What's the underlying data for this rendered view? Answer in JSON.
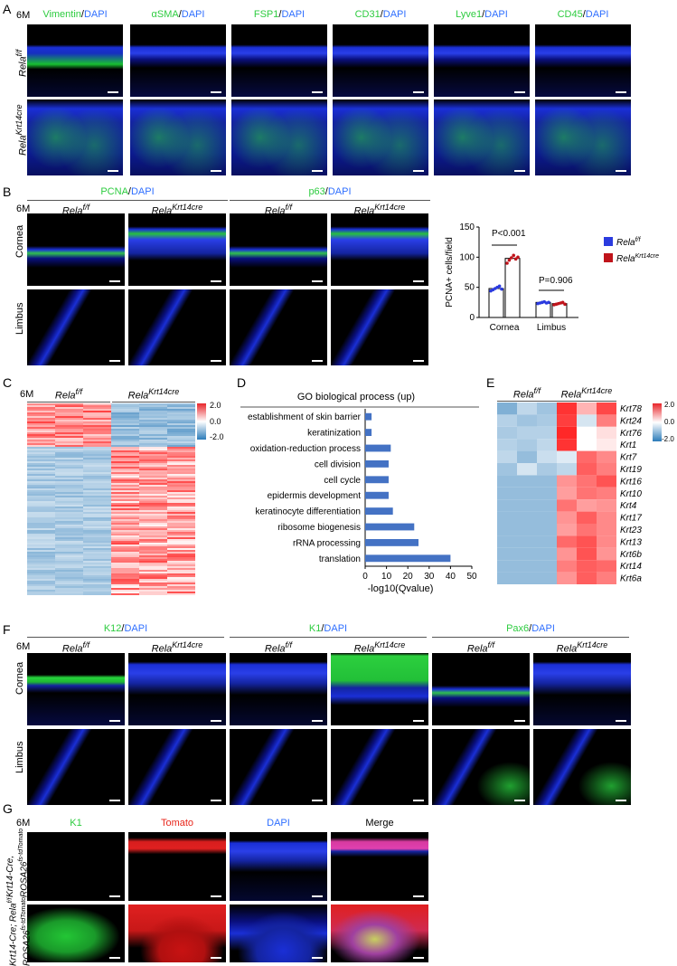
{
  "panels": {
    "A": {
      "letter": "A",
      "age": "6M",
      "col_titles": [
        {
          "marker": "Vimentin",
          "dapi": "DAPI"
        },
        {
          "marker": "αSMA",
          "dapi": "DAPI"
        },
        {
          "marker": "FSP1",
          "dapi": "DAPI"
        },
        {
          "marker": "CD31",
          "dapi": "DAPI"
        },
        {
          "marker": "Lyve1",
          "dapi": "DAPI"
        },
        {
          "marker": "CD45",
          "dapi": "DAPI"
        }
      ],
      "row_labels": [
        {
          "base": "Rela",
          "sup": "f/f"
        },
        {
          "base": "Rela",
          "sup": "Krt14cre"
        }
      ]
    },
    "B": {
      "letter": "B",
      "age": "6M",
      "groups": [
        {
          "marker": "PCNA",
          "dapi": "DAPI"
        },
        {
          "marker": "p63",
          "dapi": "DAPI"
        }
      ],
      "col_labels": [
        {
          "base": "Rela",
          "sup": "f/f"
        },
        {
          "base": "Rela",
          "sup": "Krt14cre"
        },
        {
          "base": "Rela",
          "sup": "f/f"
        },
        {
          "base": "Rela",
          "sup": "Krt14cre"
        }
      ],
      "row_labels": [
        "Cornea",
        "Limbus"
      ]
    },
    "C": {
      "letter": "C",
      "age": "6M",
      "groups": [
        {
          "base": "Rela",
          "sup": "f/f"
        },
        {
          "base": "Rela",
          "sup": "Krt14cre"
        }
      ],
      "scale": [
        "2.0",
        "0.0",
        "-2.0"
      ]
    },
    "D": {
      "letter": "D"
    },
    "E": {
      "letter": "E",
      "groups": [
        {
          "base": "Rela",
          "sup": "f/f"
        },
        {
          "base": "Rela",
          "sup": "Krt14cre"
        }
      ],
      "genes": [
        "Krt78",
        "Krt24",
        "Krt76",
        "Krt1",
        "Krt7",
        "Krt19",
        "Krt16",
        "Krt10",
        "Krt4",
        "Krt17",
        "Krt23",
        "Krt13",
        "Krt6b",
        "Krt14",
        "Krt6a"
      ],
      "scale": [
        "2.0",
        "0.0",
        "-2.0"
      ],
      "values": [
        [
          -1.2,
          -0.6,
          -0.9,
          1.9,
          0.7,
          1.7
        ],
        [
          -0.7,
          -0.9,
          -0.8,
          1.8,
          -0.4,
          1.2
        ],
        [
          -0.8,
          -0.7,
          -0.7,
          2.0,
          0.0,
          0.3
        ],
        [
          -0.7,
          -0.8,
          -0.6,
          1.9,
          0.0,
          0.2
        ],
        [
          -0.6,
          -1.0,
          -0.5,
          -0.3,
          1.4,
          1.1
        ],
        [
          -0.9,
          -0.4,
          -0.8,
          -0.6,
          1.5,
          1.2
        ],
        [
          -1.0,
          -1.0,
          -1.0,
          1.0,
          1.3,
          1.6
        ],
        [
          -1.0,
          -1.0,
          -1.0,
          0.9,
          1.3,
          1.2
        ],
        [
          -1.0,
          -1.0,
          -1.0,
          1.3,
          0.9,
          1.0
        ],
        [
          -1.0,
          -1.0,
          -1.0,
          1.0,
          1.5,
          1.1
        ],
        [
          -1.0,
          -1.0,
          -1.0,
          0.9,
          1.3,
          1.1
        ],
        [
          -1.0,
          -1.0,
          -1.0,
          1.4,
          1.6,
          1.1
        ],
        [
          -1.0,
          -1.0,
          -1.0,
          1.0,
          1.6,
          1.0
        ],
        [
          -1.0,
          -1.0,
          -1.0,
          1.2,
          1.5,
          1.4
        ],
        [
          -1.0,
          -1.0,
          -1.0,
          1.0,
          1.5,
          1.2
        ]
      ]
    },
    "F": {
      "letter": "F",
      "age": "6M",
      "groups": [
        {
          "marker": "K12",
          "dapi": "DAPI"
        },
        {
          "marker": "K1",
          "dapi": "DAPI"
        },
        {
          "marker": "Pax6",
          "dapi": "DAPI"
        }
      ],
      "col_labels": [
        {
          "base": "Rela",
          "sup": "f/f"
        },
        {
          "base": "Rela",
          "sup": "Krt14cre"
        },
        {
          "base": "Rela",
          "sup": "f/f"
        },
        {
          "base": "Rela",
          "sup": "Krt14cre"
        },
        {
          "base": "Rela",
          "sup": "f/f"
        },
        {
          "base": "Rela",
          "sup": "Krt14cre"
        }
      ],
      "row_labels": [
        "Cornea",
        "Limbus"
      ]
    },
    "G": {
      "letter": "G",
      "age": "6M",
      "col_titles": [
        "K1",
        "Tomato",
        "DAPI",
        "Merge"
      ],
      "row_labels": [
        {
          "line1": "Krt14-Cre,",
          "line2_base": "ROSA26",
          "line2_sup": "fs-tdTomato"
        },
        {
          "line1": "Krt14-Cre; Rela",
          "line1_sup": "f/f",
          "line2_base": "ROSA26",
          "line2_sup": "fs-tdTomato"
        }
      ]
    }
  },
  "chart_data": [
    {
      "type": "bar",
      "panel": "B",
      "categories": [
        "Cornea",
        "Limbus"
      ],
      "series": [
        {
          "name": "Rela f/f",
          "values": [
            48,
            25
          ],
          "color": "#2b3bdf",
          "points": [
            [
              44,
              46,
              48,
              50,
              52,
              47
            ],
            [
              23,
              24,
              25,
              26,
              24,
              25
            ]
          ]
        },
        {
          "name": "Rela Krt14cre",
          "values": [
            98,
            23
          ],
          "color": "#c0141b",
          "points": [
            [
              90,
              95,
              99,
              103,
              97,
              100
            ],
            [
              21,
              22,
              23,
              24,
              25,
              22
            ]
          ]
        }
      ],
      "ylabel": "PCNA+ cells/field",
      "ylim": [
        0,
        150
      ],
      "yticks": [
        0,
        50,
        100,
        150
      ],
      "annotations": [
        "P<0.001",
        "P=0.906"
      ]
    },
    {
      "type": "bar",
      "panel": "D",
      "title": "GO biological process (up)",
      "categories": [
        "establishment of skin barrier",
        "keratinization",
        "oxidation-reduction process",
        "cell division",
        "cell cycle",
        "epidermis development",
        "keratinocyte differentiation",
        "ribosome biogenesis",
        "rRNA processing",
        "translation"
      ],
      "values": [
        3,
        3,
        12,
        11,
        11,
        11,
        13,
        23,
        25,
        40
      ],
      "xlabel": "-log10(Qvalue)",
      "xlim": [
        0,
        50
      ],
      "xticks": [
        0,
        10,
        20,
        30,
        40,
        50
      ],
      "color": "#4472c4"
    }
  ]
}
